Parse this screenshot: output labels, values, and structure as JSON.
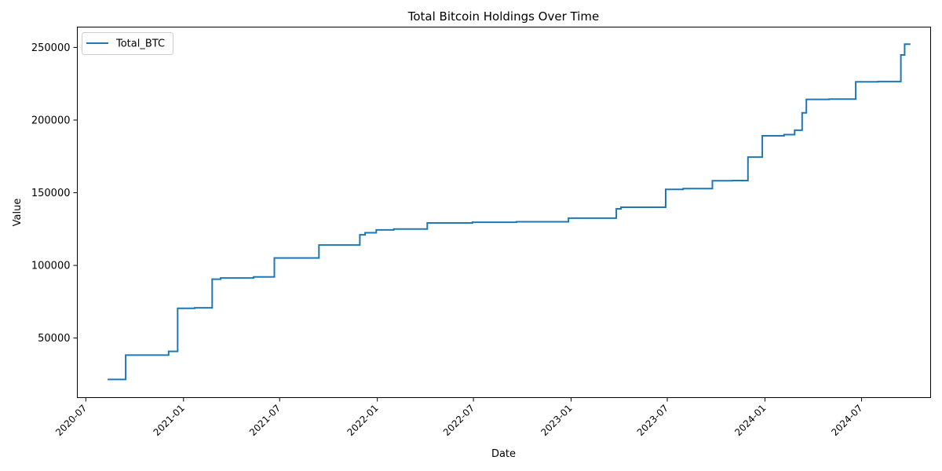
{
  "chart_data": {
    "type": "line",
    "title": "Total Bitcoin Holdings Over Time",
    "xlabel": "Date",
    "ylabel": "Value",
    "xlim": [
      "2020-06-15",
      "2024-11-08"
    ],
    "ylim": [
      9000,
      264000
    ],
    "x_ticks": [
      "2020-07",
      "2021-01",
      "2021-07",
      "2022-01",
      "2022-07",
      "2023-01",
      "2023-07",
      "2024-01",
      "2024-07"
    ],
    "y_ticks": [
      50000,
      100000,
      150000,
      200000,
      250000
    ],
    "grid": false,
    "legend_position": "top-left",
    "series": [
      {
        "name": "Total_BTC",
        "color": "#1f77b4",
        "step": true,
        "x": [
          "2020-08-11",
          "2020-09-14",
          "2020-12-04",
          "2020-12-21",
          "2021-01-22",
          "2021-02-24",
          "2021-03-12",
          "2021-05-13",
          "2021-06-21",
          "2021-09-13",
          "2021-11-29",
          "2021-12-09",
          "2021-12-30",
          "2022-02-01",
          "2022-04-05",
          "2022-06-29",
          "2022-09-20",
          "2022-12-27",
          "2023-03-27",
          "2023-04-05",
          "2023-06-28",
          "2023-07-31",
          "2023-09-24",
          "2023-11-01",
          "2023-11-30",
          "2023-12-27",
          "2024-02-06",
          "2024-02-26",
          "2024-03-11",
          "2024-03-19",
          "2024-05-01",
          "2024-06-20",
          "2024-08-01",
          "2024-09-13",
          "2024-09-20",
          "2024-10-01"
        ],
        "y": [
          21454,
          38250,
          40824,
          70470,
          70784,
          90531,
          91326,
          92079,
          105085,
          114042,
          121044,
          122478,
          124391,
          125051,
          129218,
          129699,
          130000,
          132500,
          138955,
          140000,
          152333,
          152800,
          158245,
          158400,
          174530,
          189150,
          190000,
          193000,
          205000,
          214246,
          214400,
          226331,
          226500,
          244800,
          252220,
          252220
        ]
      }
    ]
  }
}
